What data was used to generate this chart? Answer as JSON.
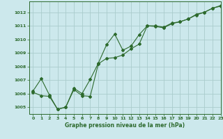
{
  "title": "Graphe pression niveau de la mer (hPa)",
  "bg_color": "#cce8ec",
  "grid_color": "#aacccc",
  "line_color": "#2d6a2d",
  "marker_color": "#2d6a2d",
  "xlim": [
    -0.5,
    23
  ],
  "ylim": [
    1004.5,
    1012.8
  ],
  "xticks": [
    0,
    1,
    2,
    3,
    4,
    5,
    6,
    7,
    8,
    9,
    10,
    11,
    12,
    13,
    14,
    15,
    16,
    17,
    18,
    19,
    20,
    21,
    22,
    23
  ],
  "yticks": [
    1005,
    1006,
    1007,
    1008,
    1009,
    1010,
    1011,
    1012
  ],
  "series1_x": [
    0,
    1,
    2,
    3,
    4,
    5,
    6,
    7,
    8,
    9,
    10,
    11,
    12,
    13,
    14,
    15,
    16,
    17,
    18,
    19,
    20,
    21,
    22,
    23
  ],
  "series1_y": [
    1006.2,
    1007.1,
    1005.9,
    1004.85,
    1005.0,
    1006.3,
    1005.85,
    1005.8,
    1008.2,
    1008.6,
    1008.65,
    1008.85,
    1009.3,
    1009.65,
    1011.0,
    1011.0,
    1010.9,
    1011.2,
    1011.3,
    1011.5,
    1011.8,
    1012.0,
    1012.3,
    1012.45
  ],
  "series2_x": [
    0,
    1,
    2,
    3,
    4,
    5,
    6,
    7,
    8,
    9,
    10,
    11,
    12,
    13,
    14,
    15,
    16,
    17,
    18,
    19,
    20,
    21,
    22,
    23
  ],
  "series2_y": [
    1006.1,
    1005.85,
    1005.8,
    1004.85,
    1005.0,
    1006.4,
    1006.0,
    1007.05,
    1008.25,
    1009.6,
    1010.4,
    1009.2,
    1009.5,
    1010.35,
    1011.0,
    1010.95,
    1010.85,
    1011.15,
    1011.3,
    1011.5,
    1011.85,
    1012.0,
    1012.3,
    1012.5
  ]
}
